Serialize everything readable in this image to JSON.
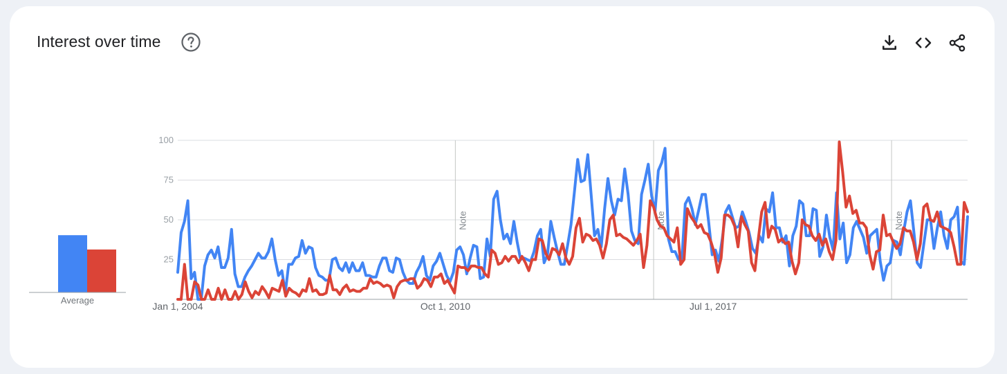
{
  "header": {
    "title": "Interest over time",
    "help_icon": "help-circle-icon",
    "actions": [
      {
        "name": "download-icon"
      },
      {
        "name": "embed-code-icon"
      },
      {
        "name": "share-icon"
      }
    ]
  },
  "average": {
    "label": "Average",
    "values": [
      36,
      27
    ],
    "colors": [
      "#4285f4",
      "#db4437"
    ]
  },
  "chart_data": {
    "type": "line",
    "x_labels": [
      "Jan 1, 2004",
      "Oct 1, 2010",
      "Jul 1, 2017"
    ],
    "x_start": "2004-01",
    "x_end": "2023-12",
    "ylim": [
      0,
      100
    ],
    "yticks": [
      25,
      50,
      75,
      100
    ],
    "grid": true,
    "notes": [
      {
        "date": "2011-01",
        "label": "Note"
      },
      {
        "date": "2016-01",
        "label": "Note"
      },
      {
        "date": "2022-01",
        "label": "Note"
      }
    ],
    "series": [
      {
        "color": "#4285f4",
        "values": [
          17,
          42,
          49,
          62,
          13,
          17,
          0,
          0,
          21,
          28,
          31,
          26,
          33,
          20,
          20,
          26,
          44,
          16,
          8,
          8,
          14,
          18,
          21,
          25,
          29,
          26,
          26,
          30,
          38,
          25,
          15,
          18,
          4,
          22,
          22,
          26,
          27,
          37,
          29,
          33,
          32,
          20,
          15,
          14,
          12,
          12,
          25,
          26,
          20,
          18,
          23,
          17,
          23,
          18,
          18,
          23,
          15,
          15,
          14,
          14,
          21,
          26,
          26,
          18,
          17,
          26,
          25,
          17,
          12,
          10,
          10,
          17,
          21,
          27,
          15,
          12,
          21,
          24,
          29,
          22,
          15,
          11,
          17,
          31,
          33,
          28,
          16,
          26,
          34,
          33,
          13,
          14,
          38,
          27,
          63,
          68,
          50,
          38,
          41,
          35,
          49,
          36,
          25,
          26,
          25,
          24,
          30,
          40,
          44,
          23,
          28,
          49,
          39,
          30,
          22,
          22,
          34,
          47,
          67,
          88,
          74,
          75,
          91,
          66,
          40,
          44,
          33,
          57,
          76,
          62,
          53,
          63,
          62,
          82,
          66,
          43,
          37,
          35,
          66,
          75,
          85,
          65,
          55,
          81,
          86,
          95,
          38,
          30,
          30,
          25,
          25,
          60,
          64,
          57,
          47,
          56,
          66,
          66,
          48,
          28,
          31,
          24,
          38,
          55,
          59,
          52,
          45,
          46,
          55,
          49,
          42,
          32,
          29,
          40,
          36,
          57,
          55,
          67,
          45,
          45,
          36,
          40,
          21,
          40,
          46,
          62,
          60,
          40,
          40,
          57,
          56,
          27,
          33,
          53,
          39,
          31,
          67,
          38,
          48,
          23,
          28,
          45,
          49,
          44,
          39,
          29,
          40,
          42,
          44,
          24,
          12,
          21,
          23,
          37,
          36,
          28,
          43,
          55,
          62,
          43,
          23,
          20,
          35,
          50,
          50,
          32,
          45,
          55,
          40,
          32,
          50,
          52,
          58,
          24,
          22,
          52
        ]
      },
      {
        "color": "#db4437",
        "values": [
          0,
          0,
          22,
          0,
          0,
          11,
          9,
          0,
          0,
          6,
          0,
          0,
          7,
          0,
          6,
          0,
          0,
          5,
          0,
          3,
          11,
          5,
          1,
          5,
          3,
          8,
          5,
          1,
          7,
          6,
          5,
          12,
          2,
          7,
          5,
          4,
          2,
          6,
          5,
          13,
          5,
          6,
          3,
          3,
          4,
          15,
          6,
          6,
          3,
          7,
          9,
          5,
          6,
          5,
          5,
          7,
          7,
          13,
          10,
          11,
          10,
          8,
          9,
          8,
          1,
          8,
          11,
          12,
          12,
          13,
          13,
          7,
          9,
          13,
          12,
          8,
          14,
          14,
          16,
          10,
          12,
          8,
          4,
          21,
          20,
          20,
          18,
          21,
          21,
          20,
          20,
          16,
          14,
          31,
          29,
          22,
          23,
          27,
          24,
          27,
          27,
          23,
          27,
          23,
          18,
          25,
          25,
          38,
          37,
          29,
          25,
          32,
          31,
          28,
          35,
          26,
          22,
          27,
          45,
          51,
          36,
          41,
          40,
          37,
          38,
          34,
          26,
          35,
          50,
          53,
          40,
          41,
          39,
          38,
          36,
          34,
          37,
          41,
          20,
          34,
          62,
          58,
          50,
          46,
          45,
          40,
          38,
          36,
          45,
          22,
          25,
          57,
          52,
          49,
          45,
          47,
          42,
          41,
          36,
          29,
          17,
          26,
          53,
          53,
          51,
          46,
          33,
          52,
          47,
          43,
          23,
          18,
          38,
          55,
          61,
          39,
          46,
          44,
          36,
          38,
          35,
          36,
          24,
          16,
          23,
          50,
          47,
          46,
          40,
          37,
          41,
          34,
          38,
          30,
          25,
          37,
          99,
          80,
          58,
          65,
          54,
          56,
          48,
          48,
          45,
          28,
          19,
          30,
          31,
          53,
          40,
          41,
          36,
          32,
          35,
          45,
          43,
          43,
          36,
          25,
          35,
          58,
          60,
          50,
          49,
          55,
          46,
          45,
          44,
          42,
          33,
          22,
          22,
          61,
          55
        ]
      }
    ]
  }
}
